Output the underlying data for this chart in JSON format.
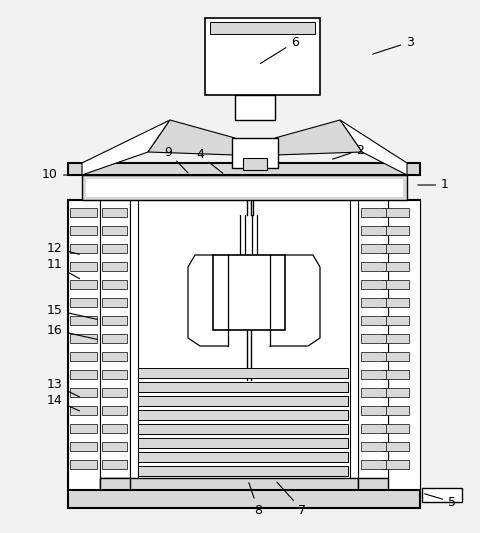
{
  "bg_color": "#f2f2f2",
  "lc": "#000000",
  "fc": "#ffffff",
  "gc": "#d8d8d8",
  "figsize": [
    4.8,
    5.33
  ],
  "dpi": 100
}
